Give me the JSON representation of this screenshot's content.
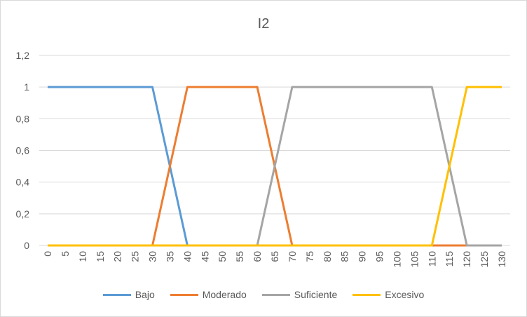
{
  "chart_data": {
    "type": "line",
    "title": "I2",
    "x": [
      0,
      5,
      10,
      15,
      20,
      25,
      30,
      35,
      40,
      45,
      50,
      55,
      60,
      65,
      70,
      75,
      80,
      85,
      90,
      95,
      100,
      105,
      110,
      115,
      120,
      125,
      130
    ],
    "ylim": [
      0,
      1.2
    ],
    "yticks": [
      "0",
      "0,2",
      "0,4",
      "0,6",
      "0,8",
      "1",
      "1,2"
    ],
    "grid": true,
    "legend_position": "bottom",
    "series": [
      {
        "name": "Bajo",
        "color": "#5b9bd5",
        "values": [
          1,
          1,
          1,
          1,
          1,
          1,
          1,
          null,
          0,
          0,
          0,
          0,
          0,
          0,
          0,
          0,
          0,
          0,
          0,
          0,
          0,
          0,
          0,
          0,
          0,
          0,
          0
        ]
      },
      {
        "name": "Moderado",
        "color": "#ed7d31",
        "values": [
          0,
          0,
          0,
          0,
          0,
          0,
          0,
          null,
          1,
          1,
          1,
          1,
          1,
          null,
          0,
          0,
          0,
          0,
          0,
          0,
          0,
          0,
          0,
          0,
          0,
          0,
          0
        ]
      },
      {
        "name": "Suficiente",
        "color": "#a5a5a5",
        "values": [
          0,
          0,
          0,
          0,
          0,
          0,
          0,
          0,
          0,
          0,
          0,
          0,
          0,
          null,
          1,
          1,
          1,
          1,
          1,
          1,
          1,
          1,
          1,
          null,
          0,
          0,
          0
        ]
      },
      {
        "name": "Excesivo",
        "color": "#ffc000",
        "values": [
          0,
          0,
          0,
          0,
          0,
          0,
          0,
          0,
          0,
          0,
          0,
          0,
          0,
          0,
          0,
          0,
          0,
          0,
          0,
          0,
          0,
          0,
          0,
          null,
          1,
          1,
          1
        ]
      }
    ]
  }
}
